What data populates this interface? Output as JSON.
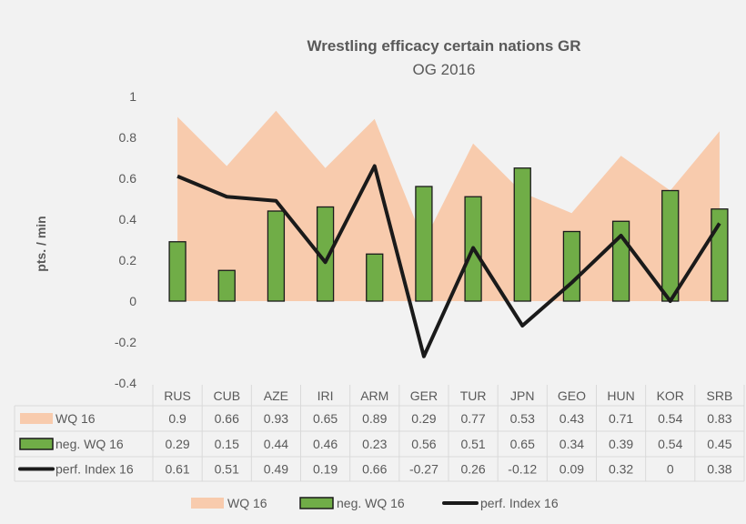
{
  "chart_data": {
    "type": "bar",
    "title": "Wrestling efficacy certain nations  GR",
    "subtitle": "OG 2016",
    "ylabel": "pts. / min",
    "xlabel": "",
    "ylim": [
      -0.4,
      1
    ],
    "yticks": [
      "1",
      "0.8",
      "0.6",
      "0.4",
      "0.2",
      "0",
      "-0.2",
      "-0.4"
    ],
    "grid": true,
    "legend_position": "bottom",
    "categories": [
      "RUS",
      "CUB",
      "AZE",
      "IRI",
      "ARM",
      "GER",
      "TUR",
      "JPN",
      "GEO",
      "HUN",
      "KOR",
      "SRB"
    ],
    "series": [
      {
        "name": "WQ 16",
        "type": "area",
        "color": "#f8cbad",
        "values": [
          0.9,
          0.66,
          0.93,
          0.65,
          0.89,
          0.29,
          0.77,
          0.53,
          0.43,
          0.71,
          0.54,
          0.83
        ],
        "labels": [
          "0.9",
          "0.66",
          "0.93",
          "0.65",
          "0.89",
          "0.29",
          "0.77",
          "0.53",
          "0.43",
          "0.71",
          "0.54",
          "0.83"
        ]
      },
      {
        "name": "neg. WQ 16",
        "type": "bar",
        "color": "#70ad47",
        "values": [
          0.29,
          0.15,
          0.44,
          0.46,
          0.23,
          0.56,
          0.51,
          0.65,
          0.34,
          0.39,
          0.54,
          0.45
        ],
        "labels": [
          "0.29",
          "0.15",
          "0.44",
          "0.46",
          "0.23",
          "0.56",
          "0.51",
          "0.65",
          "0.34",
          "0.39",
          "0.54",
          "0.45"
        ]
      },
      {
        "name": "perf. Index 16",
        "type": "line",
        "color": "#1a1a1a",
        "values": [
          0.61,
          0.51,
          0.49,
          0.19,
          0.66,
          -0.27,
          0.26,
          -0.12,
          0.09,
          0.32,
          0,
          0.38
        ],
        "labels": [
          "0.61",
          "0.51",
          "0.49",
          "0.19",
          "0.66",
          "-0.27",
          "0.26",
          "-0.12",
          "0.09",
          "0.32",
          "0",
          "0.38"
        ]
      }
    ]
  }
}
